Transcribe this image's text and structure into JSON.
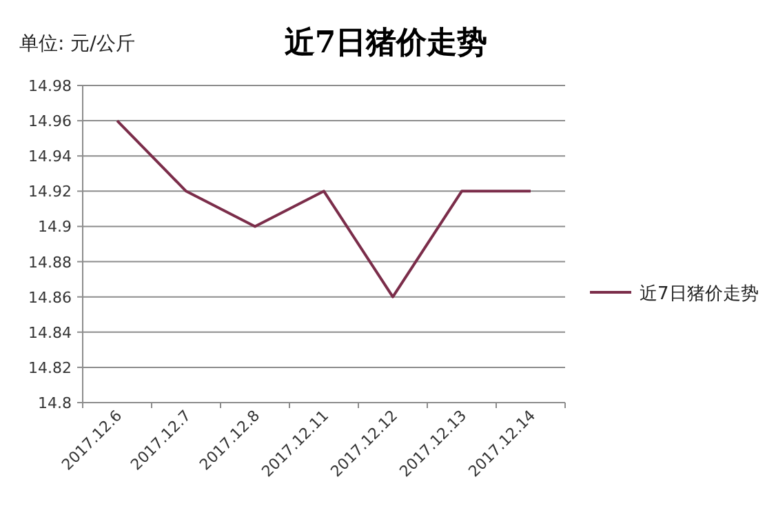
{
  "chart_data": {
    "type": "line",
    "title": "近7日猪价走势",
    "ylabel": "单位: 元/公斤",
    "categories": [
      "2017.12.6",
      "2017.12.7",
      "2017.12.8",
      "2017.12.11",
      "2017.12.12",
      "2017.12.13",
      "2017.12.14"
    ],
    "series": [
      {
        "name": "近7日猪价走势",
        "color": "#7b2d4a",
        "values": [
          14.96,
          14.92,
          14.9,
          14.92,
          14.86,
          14.92,
          14.92
        ]
      }
    ],
    "ylim": [
      14.8,
      14.98
    ],
    "yticks": [
      14.8,
      14.82,
      14.84,
      14.86,
      14.88,
      14.9,
      14.92,
      14.94,
      14.96,
      14.98
    ],
    "grid": "y",
    "legend": "right",
    "marker": "none",
    "line_style": "solid"
  }
}
